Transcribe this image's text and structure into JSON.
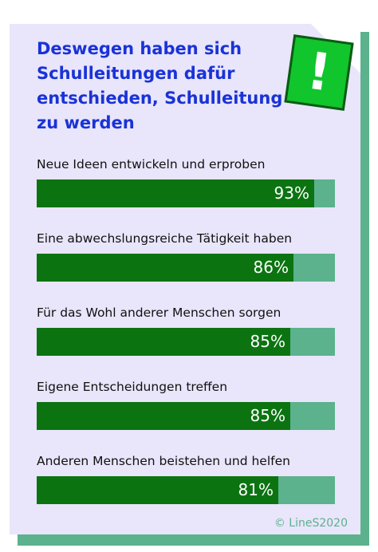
{
  "chart_data": {
    "type": "bar",
    "orientation": "horizontal",
    "title": "Deswegen haben sich Schulleitungen dafür entschieden, Schulleitung zu werden",
    "categories": [
      "Neue Ideen entwickeln und erproben",
      "Eine abwechslungsreiche Tätigkeit haben",
      "Für das Wohl anderer Menschen sorgen",
      "Eigene Entscheidungen treffen",
      "Anderen Menschen beistehen und helfen"
    ],
    "values": [
      93,
      86,
      85,
      85,
      81
    ],
    "value_labels": [
      "93%",
      "86%",
      "85%",
      "85%",
      "81%"
    ],
    "xlim": [
      0,
      100
    ],
    "colors": {
      "bar": "#0b7411",
      "track": "#5bb28c",
      "title": "#1a33d6",
      "card": "#e9e5fb"
    }
  },
  "badge": {
    "icon": "exclamation-icon",
    "glyph": "!"
  },
  "footer": {
    "copyright": "© LineS2020"
  }
}
